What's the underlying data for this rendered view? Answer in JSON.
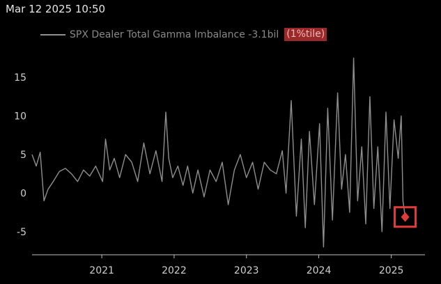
{
  "header": {
    "timestamp": "Mar 12 2025 10:50"
  },
  "legend": {
    "label": "SPX Dealer Total Gamma Imbalance -3.1bil",
    "badge": "(1%tile)"
  },
  "colors": {
    "background": "#000000",
    "series_line": "#8f8f8f",
    "axis_text": "#cfcfcf",
    "badge_bg": "#9a2a2a",
    "highlight": "#e23b3b"
  },
  "chart_data": {
    "type": "line",
    "title": "",
    "xlabel": "",
    "ylabel": "",
    "xlim": [
      "2020-01-15",
      "2025-06-20"
    ],
    "ylim": [
      -8,
      18
    ],
    "grid": false,
    "x_ticks": [
      "2021",
      "2022",
      "2023",
      "2024",
      "2025"
    ],
    "y_ticks": [
      -5,
      0,
      5,
      10,
      15
    ],
    "series": [
      {
        "name": "SPX Dealer Total Gamma Imbalance",
        "x": [
          "2020-01-15",
          "2020-02-05",
          "2020-02-25",
          "2020-03-15",
          "2020-04-05",
          "2020-05-01",
          "2020-06-01",
          "2020-07-01",
          "2020-08-01",
          "2020-09-01",
          "2020-10-01",
          "2020-11-01",
          "2020-12-01",
          "2021-01-05",
          "2021-01-20",
          "2021-02-10",
          "2021-03-05",
          "2021-04-01",
          "2021-05-01",
          "2021-06-01",
          "2021-07-01",
          "2021-08-01",
          "2021-09-01",
          "2021-10-01",
          "2021-11-01",
          "2021-11-20",
          "2021-12-05",
          "2021-12-25",
          "2022-01-20",
          "2022-02-15",
          "2022-03-10",
          "2022-04-05",
          "2022-05-01",
          "2022-06-01",
          "2022-07-01",
          "2022-08-01",
          "2022-09-01",
          "2022-10-01",
          "2022-11-01",
          "2022-12-01",
          "2023-01-01",
          "2023-02-01",
          "2023-03-01",
          "2023-04-01",
          "2023-05-01",
          "2023-06-01",
          "2023-07-01",
          "2023-07-20",
          "2023-08-15",
          "2023-09-10",
          "2023-10-05",
          "2023-10-25",
          "2023-11-15",
          "2023-12-10",
          "2024-01-05",
          "2024-01-25",
          "2024-02-15",
          "2024-03-10",
          "2024-04-05",
          "2024-04-25",
          "2024-05-15",
          "2024-06-05",
          "2024-06-25",
          "2024-07-15",
          "2024-08-05",
          "2024-08-25",
          "2024-09-15",
          "2024-10-05",
          "2024-10-25",
          "2024-11-15",
          "2024-12-05",
          "2024-12-25",
          "2025-01-15",
          "2025-02-05",
          "2025-02-20",
          "2025-03-01",
          "2025-03-12"
        ],
        "values": [
          5.0,
          3.5,
          5.3,
          -1.0,
          0.5,
          1.5,
          2.8,
          3.2,
          2.5,
          1.5,
          3.0,
          2.2,
          3.5,
          1.5,
          7.0,
          3.0,
          4.5,
          2.0,
          5.0,
          4.0,
          1.5,
          6.5,
          2.5,
          5.5,
          1.5,
          10.5,
          4.5,
          2.0,
          3.5,
          1.0,
          3.5,
          0.0,
          3.0,
          -0.5,
          3.0,
          1.5,
          4.0,
          -1.5,
          3.0,
          5.0,
          2.0,
          4.0,
          0.5,
          4.0,
          3.0,
          2.5,
          5.5,
          0.0,
          12.0,
          -3.0,
          7.0,
          -4.5,
          8.0,
          -1.5,
          9.0,
          -7.0,
          11.0,
          -3.5,
          13.0,
          0.5,
          5.0,
          -2.5,
          17.5,
          -1.0,
          6.0,
          -4.0,
          12.5,
          -2.0,
          6.0,
          -5.0,
          10.5,
          -2.0,
          9.5,
          4.5,
          10.0,
          -1.0,
          -3.1
        ]
      }
    ],
    "highlight_point": {
      "x": "2025-03-12",
      "y": -3.1
    }
  }
}
